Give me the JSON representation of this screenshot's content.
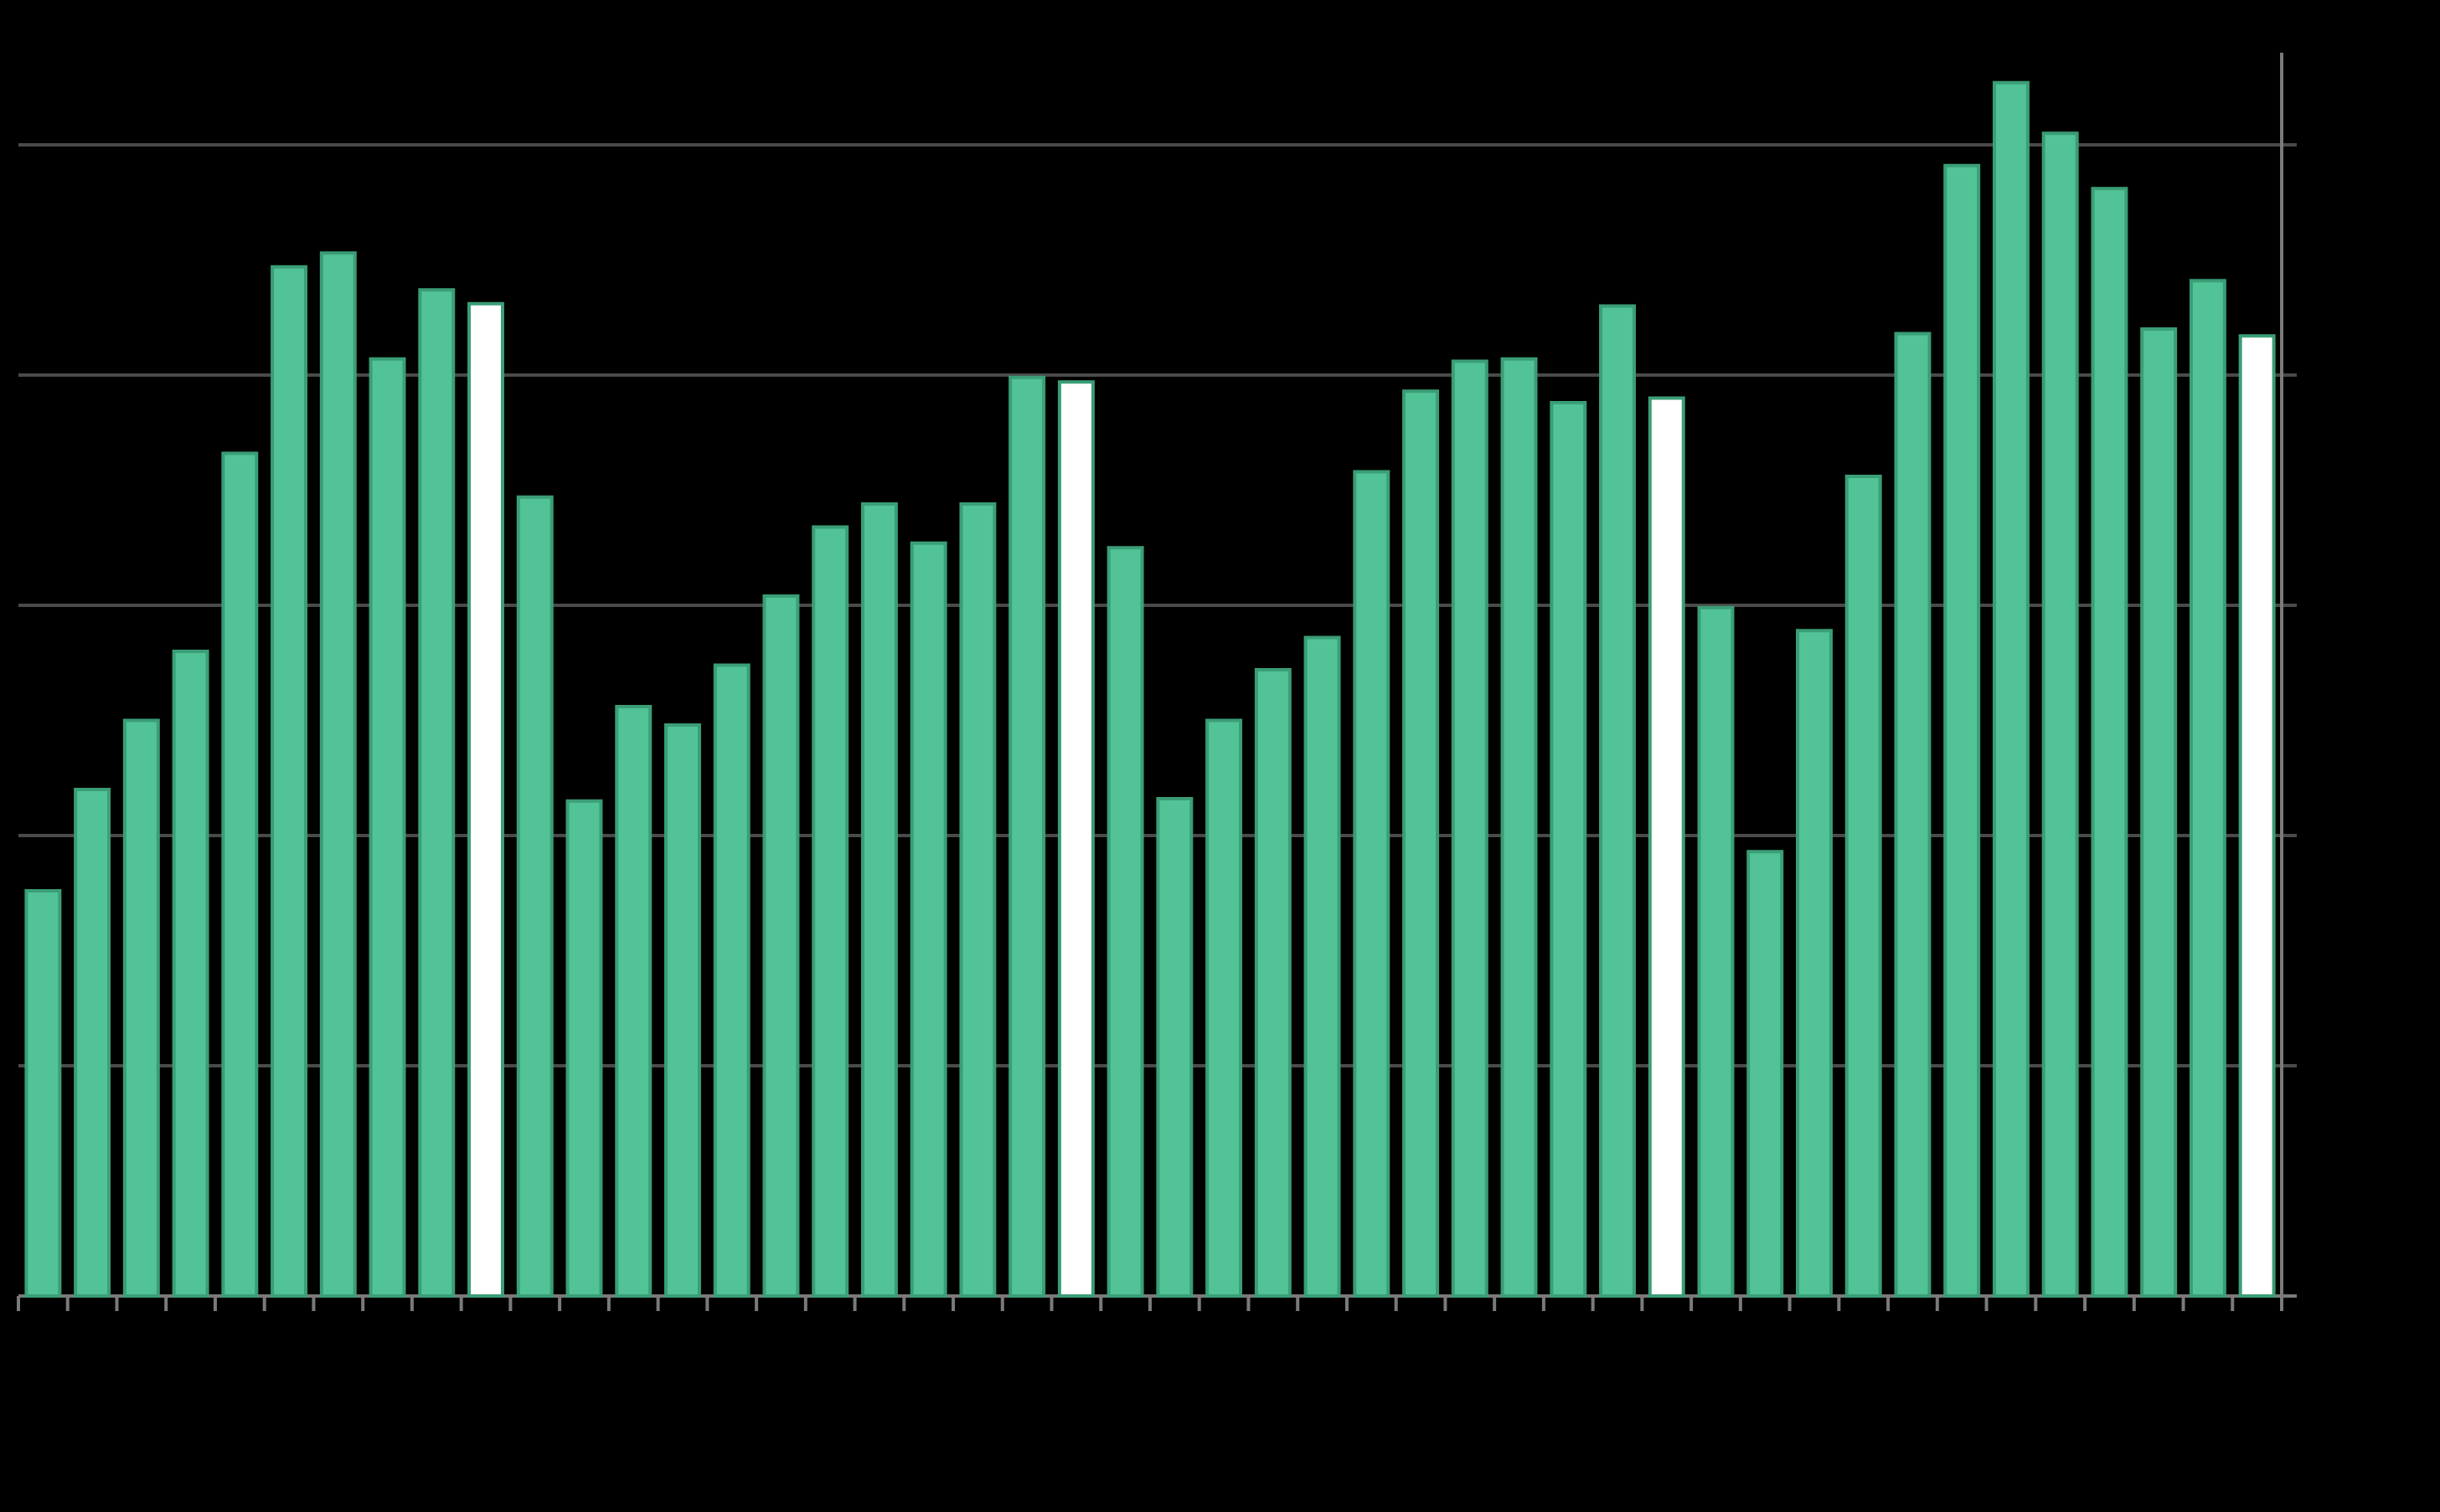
{
  "chart_data": {
    "type": "bar",
    "categories": [
      null,
      null,
      null,
      null,
      null,
      null,
      null,
      null,
      null,
      null,
      null,
      null,
      null,
      null,
      null,
      null,
      null,
      null,
      null,
      null,
      null,
      null,
      null,
      null,
      null,
      null,
      null,
      null,
      null,
      null,
      null,
      null,
      null,
      null,
      null,
      null,
      null,
      null,
      null,
      null,
      null,
      null,
      null,
      null,
      null,
      null
    ],
    "values": [
      1.76,
      2.2,
      2.5,
      2.8,
      3.66,
      4.47,
      4.53,
      4.07,
      4.37,
      4.31,
      3.47,
      2.15,
      2.56,
      2.48,
      2.74,
      3.04,
      3.34,
      3.44,
      3.27,
      3.44,
      3.99,
      3.97,
      3.25,
      2.16,
      2.5,
      2.72,
      2.86,
      3.58,
      3.93,
      4.06,
      4.07,
      3.88,
      4.3,
      3.9,
      2.99,
      1.93,
      2.89,
      3.56,
      4.18,
      4.91,
      5.27,
      5.05,
      4.81,
      4.2,
      4.41,
      4.17
    ],
    "colors": [
      "#52c397",
      "#52c397",
      "#52c397",
      "#52c397",
      "#52c397",
      "#52c397",
      "#52c397",
      "#52c397",
      "#52c397",
      "#ffffff",
      "#52c397",
      "#52c397",
      "#52c397",
      "#52c397",
      "#52c397",
      "#52c397",
      "#52c397",
      "#52c397",
      "#52c397",
      "#52c397",
      "#52c397",
      "#ffffff",
      "#52c397",
      "#52c397",
      "#52c397",
      "#52c397",
      "#52c397",
      "#52c397",
      "#52c397",
      "#52c397",
      "#52c397",
      "#52c397",
      "#52c397",
      "#ffffff",
      "#52c397",
      "#52c397",
      "#52c397",
      "#52c397",
      "#52c397",
      "#52c397",
      "#52c397",
      "#52c397",
      "#52c397",
      "#52c397",
      "#52c397",
      "#ffffff"
    ],
    "edge_color": "#3a9e76",
    "ylim": [
      0,
      5.4
    ],
    "yticks": [
      0,
      1,
      2,
      3,
      4,
      5
    ],
    "grid": true
  }
}
